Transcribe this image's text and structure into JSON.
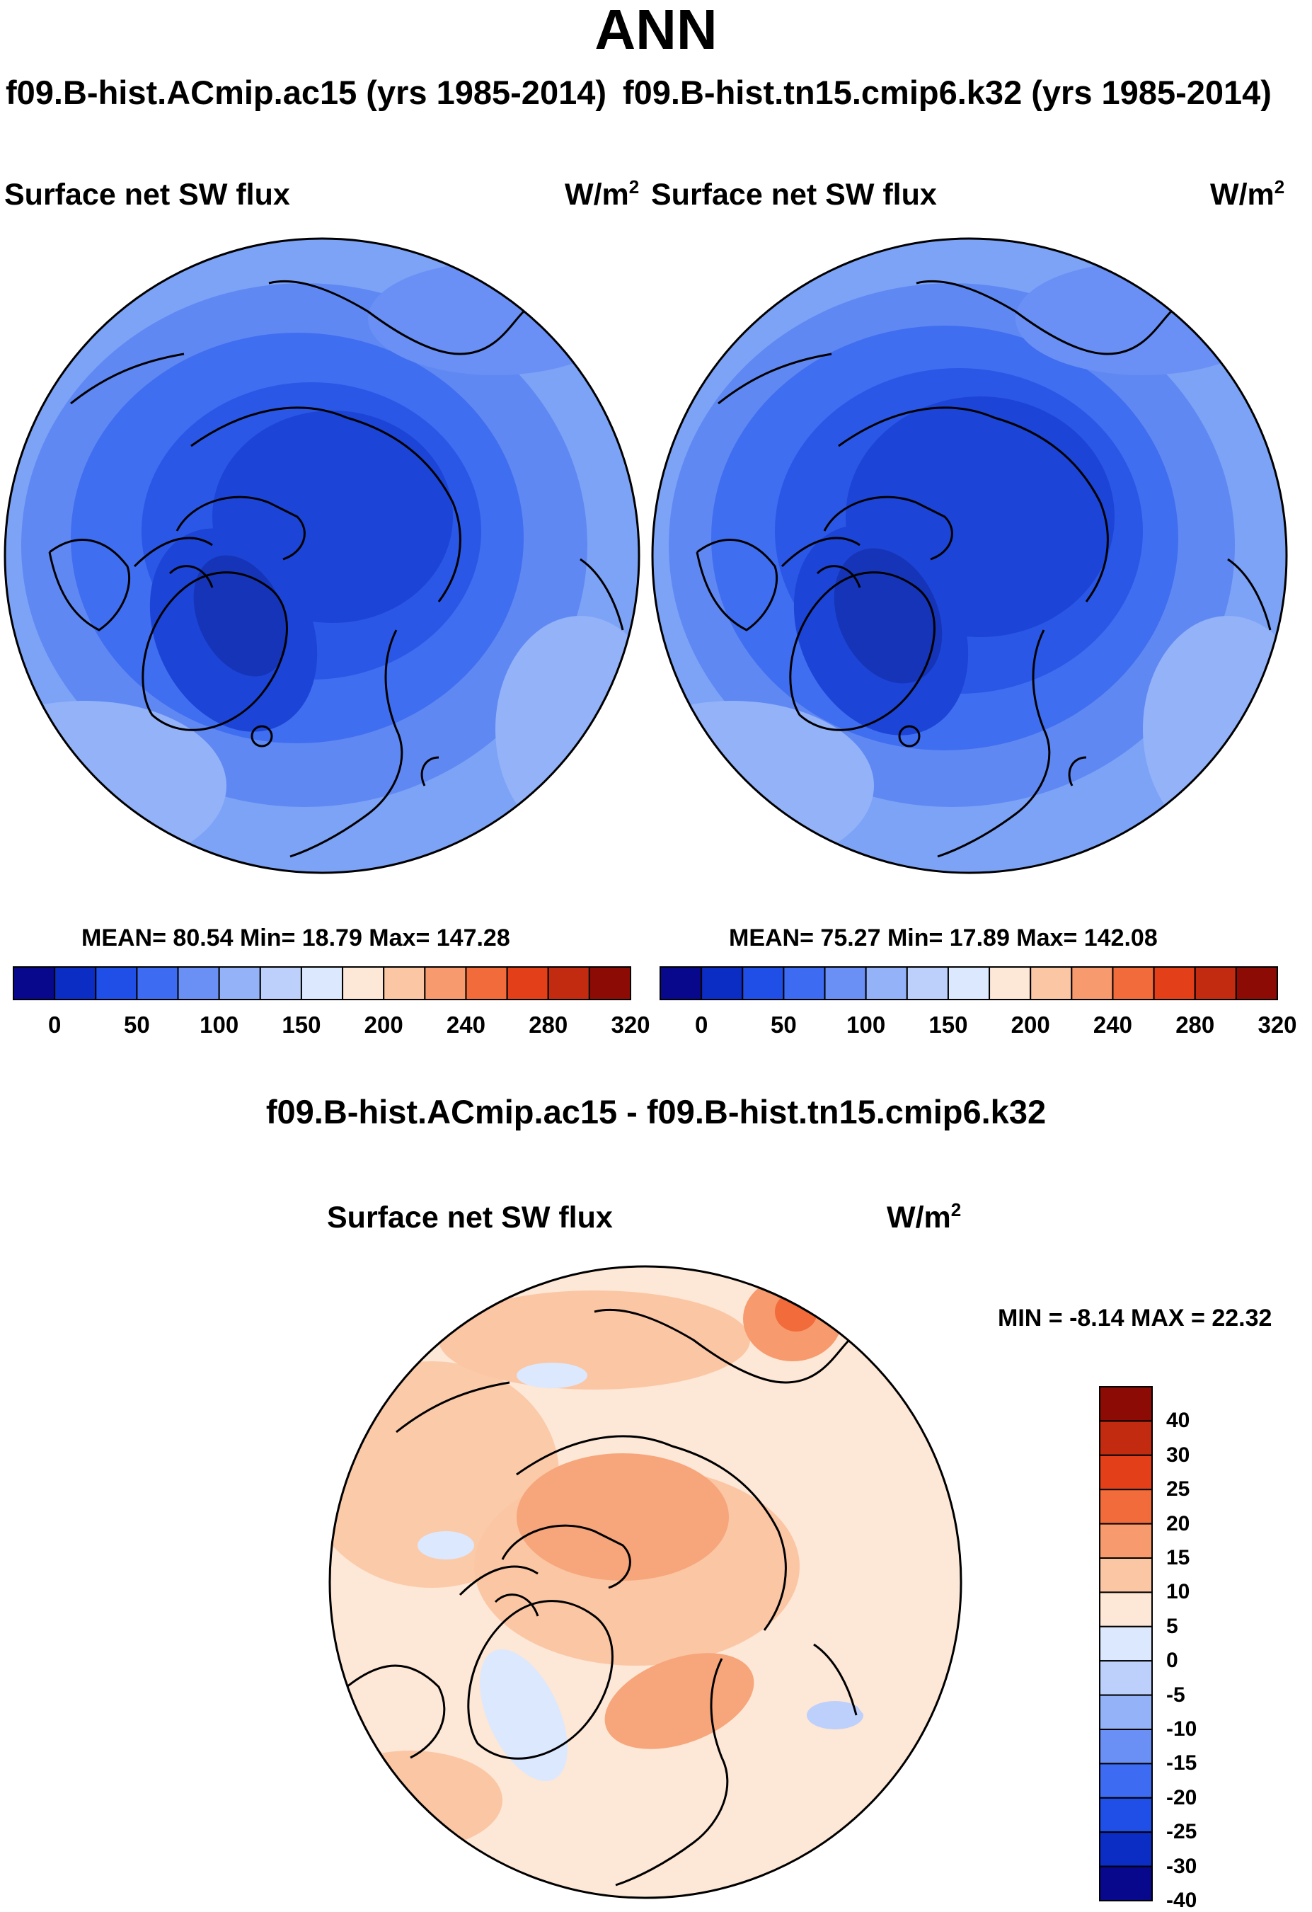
{
  "title": "ANN",
  "panels": [
    {
      "case_title": "f09.B-hist.ACmip.ac15 (yrs 1985-2014)",
      "variable": "Surface net SW flux",
      "unit_base": "W/m",
      "unit_exp": "2",
      "stats": "MEAN=  80.54  Min=  18.79  Max= 147.28"
    },
    {
      "case_title": "f09.B-hist.tn15.cmip6.k32 (yrs 1985-2014)",
      "variable": "Surface net SW flux",
      "unit_base": "W/m",
      "unit_exp": "2",
      "stats": "MEAN=  75.27  Min=  17.89  Max= 142.08"
    }
  ],
  "colorbar_top": {
    "tick_labels": [
      "0",
      "50",
      "100",
      "150",
      "200",
      "240",
      "280",
      "320"
    ],
    "colors": [
      "#08088c",
      "#0b2dc4",
      "#1f4fe6",
      "#3d6cf2",
      "#6a90f5",
      "#93b2f8",
      "#bcd0fb",
      "#dce8fd",
      "#fde7d6",
      "#fbc6a4",
      "#f79a6d",
      "#f26b3a",
      "#e3401a",
      "#c22b10",
      "#8c0c05"
    ]
  },
  "difference": {
    "title": "f09.B-hist.ACmip.ac15 - f09.B-hist.tn15.cmip6.k32",
    "variable": "Surface net SW flux",
    "unit_base": "W/m",
    "unit_exp": "2",
    "stats": "MIN =  -8.14 MAX =  22.32",
    "colorbar": {
      "tick_labels": [
        "40",
        "30",
        "25",
        "20",
        "15",
        "10",
        "5",
        "0",
        "-5",
        "-10",
        "-15",
        "-20",
        "-25",
        "-30",
        "-40"
      ],
      "colors": [
        "#8c0c05",
        "#c22b10",
        "#e3401a",
        "#f26b3a",
        "#f79a6d",
        "#fbc6a4",
        "#fde7d6",
        "#dce8fd",
        "#bcd0fb",
        "#93b2f8",
        "#6a90f5",
        "#3d6cf2",
        "#1f4fe6",
        "#0b2dc4",
        "#08088c"
      ]
    }
  }
}
